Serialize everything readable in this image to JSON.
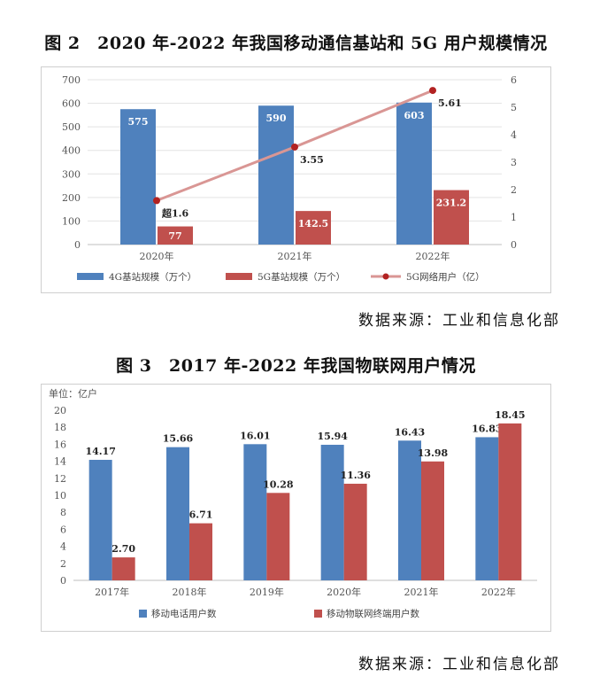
{
  "figure2": {
    "title": "图 2　2020 年-2022 年我国移动通信基站和 5G 用户规模情况",
    "source": "数据来源：工业和信息化部"
  },
  "figure3": {
    "title": "图 3　2017 年-2022 年我国物联网用户情况",
    "source": "数据来源：工业和信息化部"
  },
  "chart_data": [
    {
      "type": "bar",
      "categories": [
        "2020年",
        "2021年",
        "2022年"
      ],
      "ylim": [
        0,
        700
      ],
      "yticks": [
        0,
        100,
        200,
        300,
        400,
        500,
        600,
        700
      ],
      "y2lim": [
        0,
        6
      ],
      "y2ticks": [
        0,
        1,
        2,
        3,
        4,
        5,
        6
      ],
      "grid": true,
      "legend_position": "bottom",
      "series": [
        {
          "name": "4G基站规模（万个）",
          "type": "bar",
          "axis": "left",
          "color": "#4f81bd",
          "values": [
            575,
            590,
            603
          ],
          "labels": [
            "575",
            "590",
            "603"
          ]
        },
        {
          "name": "5G基站规模（万个）",
          "type": "bar",
          "axis": "left",
          "color": "#c0504d",
          "values": [
            77,
            142.5,
            231.2
          ],
          "labels": [
            "77",
            "142.5",
            "231.2"
          ]
        },
        {
          "name": "5G网络用户（亿）",
          "type": "line",
          "axis": "right",
          "color": "#d99694",
          "marker_color": "#b22222",
          "values": [
            1.6,
            3.55,
            5.61
          ],
          "labels": [
            "超1.6",
            "3.55",
            "5.61"
          ]
        }
      ]
    },
    {
      "type": "bar",
      "unit_label": "单位：亿户",
      "categories": [
        "2017年",
        "2018年",
        "2019年",
        "2020年",
        "2021年",
        "2022年"
      ],
      "ylim": [
        0,
        20
      ],
      "yticks": [
        0,
        2,
        4,
        6,
        8,
        10,
        12,
        14,
        16,
        18,
        20
      ],
      "grid": false,
      "legend_position": "bottom",
      "series": [
        {
          "name": "移动电话用户数",
          "type": "bar",
          "color": "#4f81bd",
          "values": [
            14.17,
            15.66,
            16.01,
            15.94,
            16.43,
            16.83
          ],
          "labels": [
            "14.17",
            "15.66",
            "16.01",
            "15.94",
            "16.43",
            "16.83"
          ]
        },
        {
          "name": "移动物联网终端用户数",
          "type": "bar",
          "color": "#c0504d",
          "values": [
            2.7,
            6.71,
            10.28,
            11.36,
            13.98,
            18.45
          ],
          "labels": [
            "2.70",
            "6.71",
            "10.28",
            "11.36",
            "13.98",
            "18.45"
          ]
        }
      ]
    }
  ]
}
